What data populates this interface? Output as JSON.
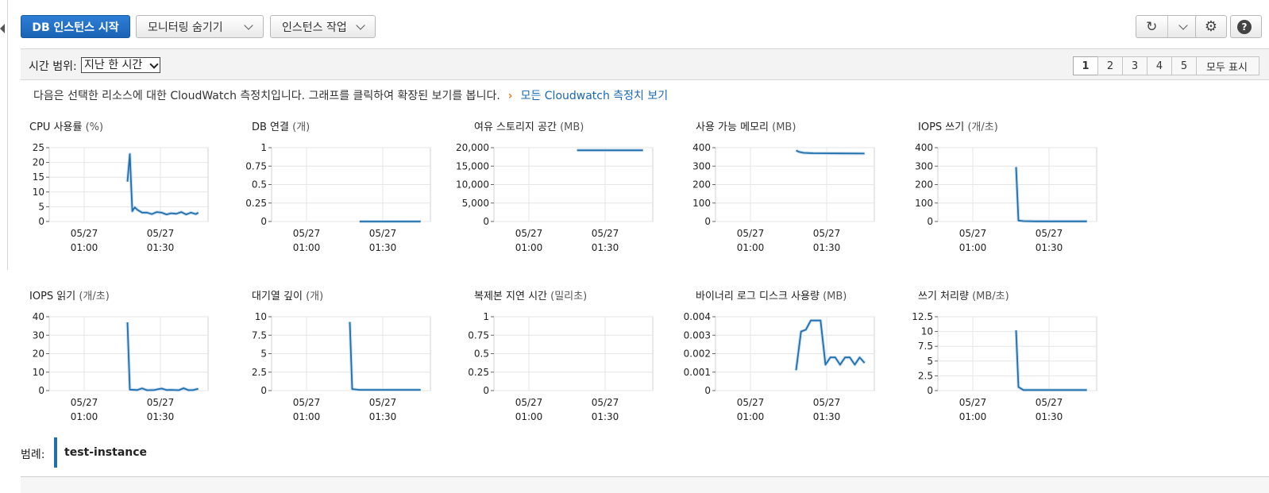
{
  "toolbar": {
    "start_db": "DB 인스턴스 시작",
    "monitoring": "모니터링 숨기기",
    "actions": "인스턴스 작업",
    "refresh_icon": "refresh-icon",
    "settings_icon": "gear-icon",
    "help_icon": "help-icon",
    "help_glyph": "?"
  },
  "time_range": {
    "label": "시간 범위:",
    "selected": "지난 한 시간"
  },
  "pagination": {
    "pages": [
      "1",
      "2",
      "3",
      "4",
      "5"
    ],
    "active": "1",
    "show_all": "모두 표시"
  },
  "info": {
    "text": "다음은 선택한 리소스에 대한 CloudWatch 측정치입니다. 그래프를 클릭하여 확장된 보기를 봅니다.",
    "arrow": "›",
    "link": "모든 Cloudwatch 측정치 보기"
  },
  "legend": {
    "label": "범례:",
    "instance": "test-instance",
    "color": "#1f6fab"
  },
  "chart_data": [
    {
      "type": "line",
      "title": "CPU 사용률",
      "unit": "(%)",
      "x_ticks": [
        [
          "05/27",
          "01:00"
        ],
        [
          "05/27",
          "01:30"
        ]
      ],
      "y_ticks": [
        "25",
        "20",
        "15",
        "10",
        "5",
        "0"
      ],
      "ylim": [
        0,
        25
      ],
      "series": [
        {
          "name": "test-instance",
          "x": [
            32,
            33,
            34,
            35,
            36,
            38,
            40,
            42,
            44,
            46,
            48,
            50,
            52,
            54,
            56,
            58,
            60,
            61
          ],
          "y": [
            13.5,
            22.8,
            3.5,
            4.8,
            4,
            3,
            3,
            2.5,
            3.2,
            3,
            2.4,
            2.8,
            2.6,
            3.2,
            2.4,
            3,
            2.5,
            3
          ]
        }
      ]
    },
    {
      "type": "line",
      "title": "DB 연결",
      "unit": "(개)",
      "x_ticks": [
        [
          "05/27",
          "01:00"
        ],
        [
          "05/27",
          "01:30"
        ]
      ],
      "y_ticks": [
        "1",
        "0.75",
        "0.5",
        "0.25",
        "0"
      ],
      "ylim": [
        0,
        1
      ],
      "series": [
        {
          "name": "test-instance",
          "x": [
            36,
            61
          ],
          "y": [
            0,
            0
          ]
        }
      ]
    },
    {
      "type": "line",
      "title": "여유 스토리지 공간",
      "unit": "(MB)",
      "x_ticks": [
        [
          "05/27",
          "01:00"
        ],
        [
          "05/27",
          "01:30"
        ]
      ],
      "y_ticks": [
        "20,000",
        "15,000",
        "10,000",
        "5,000",
        "0"
      ],
      "ylim": [
        0,
        20000
      ],
      "series": [
        {
          "name": "test-instance",
          "x": [
            34,
            61
          ],
          "y": [
            19300,
            19300
          ]
        }
      ]
    },
    {
      "type": "line",
      "title": "사용 가능 메모리",
      "unit": "(MB)",
      "x_ticks": [
        [
          "05/27",
          "01:00"
        ],
        [
          "05/27",
          "01:30"
        ]
      ],
      "y_ticks": [
        "400",
        "300",
        "200",
        "100",
        "0"
      ],
      "ylim": [
        0,
        400
      ],
      "series": [
        {
          "name": "test-instance",
          "x": [
            33,
            34,
            36,
            40,
            50,
            61
          ],
          "y": [
            385,
            378,
            372,
            370,
            369,
            368
          ]
        }
      ]
    },
    {
      "type": "line",
      "title": "IOPS 쓰기",
      "unit": "(개/초)",
      "x_ticks": [
        [
          "05/27",
          "01:00"
        ],
        [
          "05/27",
          "01:30"
        ]
      ],
      "y_ticks": [
        "400",
        "300",
        "200",
        "100",
        "0"
      ],
      "ylim": [
        0,
        400
      ],
      "series": [
        {
          "name": "test-instance",
          "x": [
            32,
            33,
            35,
            40,
            61
          ],
          "y": [
            295,
            5,
            2,
            1,
            1
          ]
        }
      ]
    },
    {
      "type": "line",
      "title": "IOPS 읽기",
      "unit": "(개/초)",
      "x_ticks": [
        [
          "05/27",
          "01:00"
        ],
        [
          "05/27",
          "01:30"
        ]
      ],
      "y_ticks": [
        "40",
        "30",
        "20",
        "10",
        "0"
      ],
      "ylim": [
        0,
        40
      ],
      "series": [
        {
          "name": "test-instance",
          "x": [
            32,
            33,
            36,
            38,
            40,
            43,
            46,
            48,
            50,
            53,
            55,
            57,
            59,
            61
          ],
          "y": [
            37,
            0.5,
            0.3,
            1.2,
            0.2,
            0.3,
            1.1,
            0.3,
            0.4,
            0.2,
            1.3,
            0.2,
            0.3,
            1
          ]
        }
      ]
    },
    {
      "type": "line",
      "title": "대기열 깊이",
      "unit": "(개)",
      "x_ticks": [
        [
          "05/27",
          "01:00"
        ],
        [
          "05/27",
          "01:30"
        ]
      ],
      "y_ticks": [
        "10",
        "7.5",
        "5",
        "2.5",
        "0"
      ],
      "ylim": [
        0,
        10
      ],
      "series": [
        {
          "name": "test-instance",
          "x": [
            32,
            33,
            36,
            61
          ],
          "y": [
            9.3,
            0.2,
            0.1,
            0.1
          ]
        }
      ]
    },
    {
      "type": "line",
      "title": "복제본 지연 시간",
      "unit": "(밀리초)",
      "x_ticks": [
        [
          "05/27",
          "01:00"
        ],
        [
          "05/27",
          "01:30"
        ]
      ],
      "y_ticks": [
        "1",
        "0.75",
        "0.5",
        "0.25",
        "0"
      ],
      "ylim": [
        0,
        1
      ],
      "series": []
    },
    {
      "type": "line",
      "title": "바이너리 로그 디스크 사용량",
      "unit": "(MB)",
      "x_ticks": [
        [
          "05/27",
          "01:00"
        ],
        [
          "05/27",
          "01:30"
        ]
      ],
      "y_ticks": [
        "0.004",
        "0.003",
        "0.002",
        "0.001",
        "0"
      ],
      "ylim": [
        0,
        0.004
      ],
      "series": [
        {
          "name": "test-instance",
          "x": [
            33,
            35,
            37,
            39,
            41,
            43,
            45,
            47,
            49,
            51,
            53,
            55,
            57,
            59,
            61
          ],
          "y": [
            0.0011,
            0.0032,
            0.0033,
            0.0038,
            0.0038,
            0.0038,
            0.0014,
            0.0018,
            0.0018,
            0.0014,
            0.0018,
            0.0018,
            0.0014,
            0.0018,
            0.0015
          ]
        }
      ]
    },
    {
      "type": "line",
      "title": "쓰기 처리량",
      "unit": "(MB/초)",
      "x_ticks": [
        [
          "05/27",
          "01:00"
        ],
        [
          "05/27",
          "01:30"
        ]
      ],
      "y_ticks": [
        "12.5",
        "10",
        "7.5",
        "5",
        "2.5",
        "0"
      ],
      "ylim": [
        0,
        12.5
      ],
      "series": [
        {
          "name": "test-instance",
          "x": [
            32,
            33,
            35,
            40,
            61
          ],
          "y": [
            10.2,
            0.6,
            0.1,
            0.1,
            0.1
          ]
        }
      ]
    }
  ]
}
